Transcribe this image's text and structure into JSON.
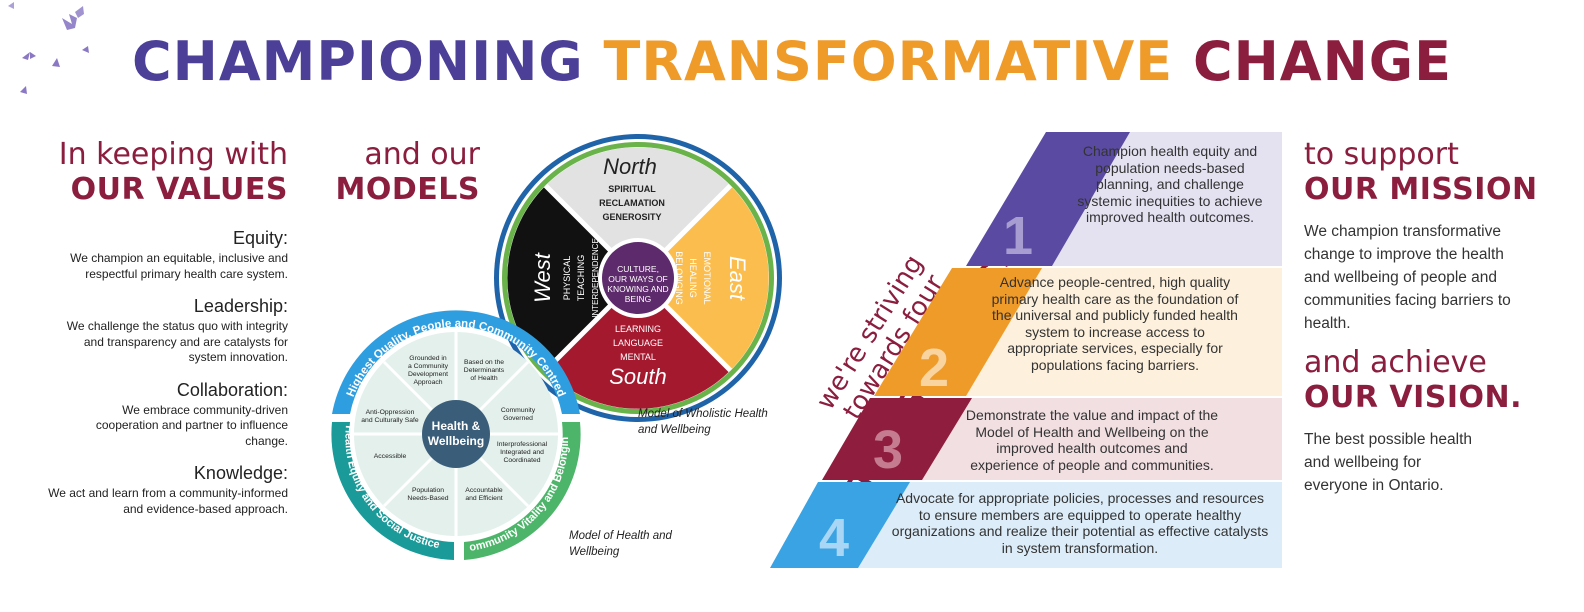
{
  "colors": {
    "purple": "#4b3f98",
    "orange": "#ef9b2a",
    "maroon": "#8b1e3f",
    "blue": "#2f9ee0",
    "teal": "#1a9a98",
    "green": "#4db56a"
  },
  "title": {
    "part1": "CHAMPIONING",
    "part2": "TRANSFORMATIVE",
    "part3": "CHANGE"
  },
  "values": {
    "intro": "In keeping with",
    "heading": "OUR VALUES",
    "items": [
      {
        "name": "Equity:",
        "desc": "We champion an equitable, inclusive and respectful primary health care system."
      },
      {
        "name": "Leadership:",
        "desc": "We challenge the status quo with integrity and transparency and are catalysts for system innovation."
      },
      {
        "name": "Collaboration:",
        "desc": "We embrace community-driven cooperation and partner to influence change."
      },
      {
        "name": "Knowledge:",
        "desc": "We act and learn from a community-informed and evidence-based approach."
      }
    ]
  },
  "models": {
    "intro": "and our",
    "heading": "MODELS",
    "wholistic": {
      "caption": "Model of Wholistic Health and Wellbeing",
      "center": "CULTURE, OUR WAYS OF KNOWING AND BEING",
      "north": {
        "label": "North",
        "words": [
          "SPIRITUAL",
          "RECLAMATION",
          "GENEROSITY"
        ]
      },
      "east": {
        "label": "East",
        "words": [
          "EMOTIONAL",
          "HEALING",
          "BELONGING"
        ]
      },
      "south": {
        "label": "South",
        "words": [
          "LEARNING",
          "LANGUAGE",
          "MENTAL"
        ]
      },
      "west": {
        "label": "West",
        "words": [
          "PHYSICAL",
          "TEACHING",
          "INTERDEPENDENCE"
        ]
      }
    },
    "health": {
      "caption": "Model of Health and Wellbeing",
      "center": "Health & Wellbeing",
      "arc_top": "Highest Quality, People and Community Centred",
      "arc_left": "Health Equity and Social Justice",
      "arc_right": "Community Vitality and Belonging",
      "segments": [
        "Grounded in a Community Development Approach",
        "Based on the Determinants of Health",
        "Community Governed",
        "Interprofessional Integrated and Coordinated",
        "Accountable and Efficient",
        "Population Needs-Based",
        "Accessible",
        "Anti-Oppression and Culturally Safe"
      ]
    }
  },
  "directions": {
    "line1": "we're striving",
    "line2": "towards four",
    "heading": "STRATEGIC DIRECTIONS",
    "items": [
      {
        "number": "1",
        "color": "#5b4aa2",
        "bg": "#e4e1f1",
        "text": "Champion health equity and population needs-based planning, and challenge systemic inequities to achieve improved health outcomes."
      },
      {
        "number": "2",
        "color": "#ef9b2a",
        "bg": "#fdf0dc",
        "text": "Advance people-centred, high quality primary health care as the foundation of the universal and publicly funded health system to increase access to appropriate services, especially for populations facing barriers."
      },
      {
        "number": "3",
        "color": "#8f1d3e",
        "bg": "#f1dfe2",
        "text": "Demonstrate the value and impact of the Model of Health and Wellbeing on the improved health outcomes and experience of people and communities."
      },
      {
        "number": "4",
        "color": "#3aa3e3",
        "bg": "#dcecf8",
        "text": "Advocate for appropriate policies, processes and resources to ensure members are equipped to operate healthy organizations and realize their potential as effective catalysts in system transformation."
      }
    ]
  },
  "mission": {
    "intro": "to support",
    "heading": "OUR MISSION",
    "text": "We champion transformative change to improve the health and wellbeing of people and communities facing barriers to health."
  },
  "vision": {
    "intro": "and achieve",
    "heading": "OUR VISION.",
    "text": "The best possible health and wellbeing for everyone in Ontario."
  },
  "decor": {
    "icon": "butterflies-icon"
  }
}
